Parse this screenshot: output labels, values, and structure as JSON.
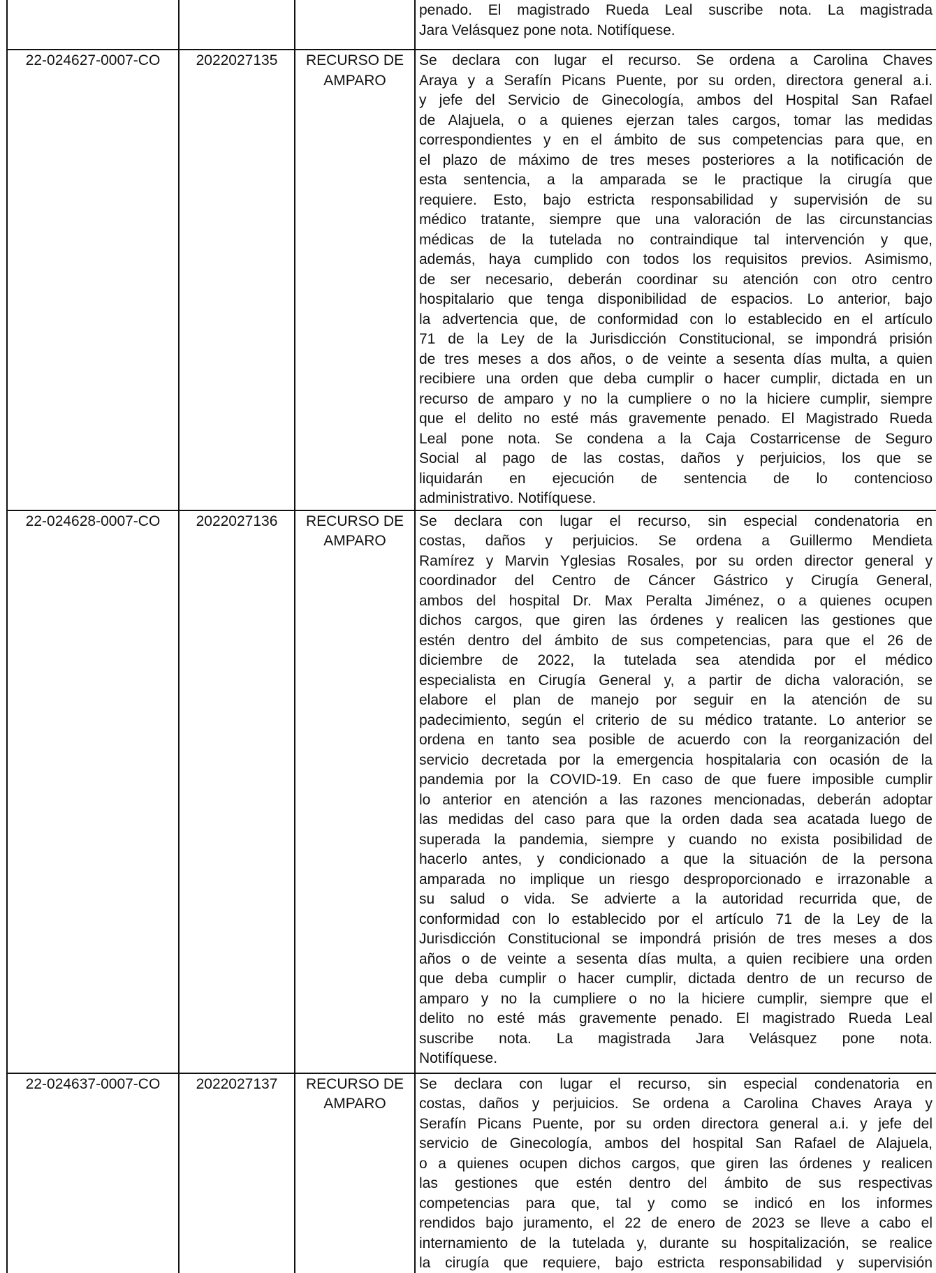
{
  "table": {
    "rows": [
      {
        "case": "",
        "number": "",
        "type": "",
        "text": [
          "penado. El magistrado Rueda Leal suscribe nota. La magistrada",
          "Jara Velásquez pone nota. Notifíquese."
        ]
      },
      {
        "case": "22-024627-0007-CO",
        "number": "2022027135",
        "type": "RECURSO DE AMPARO",
        "text": [
          "Se declara con lugar el recurso. Se ordena a Carolina Chaves",
          "Araya y a Serafín Picans Puente, por su orden, directora general a.i.",
          "y jefe del Servicio de Ginecología, ambos del Hospital San Rafael",
          "de Alajuela, o a quienes ejerzan tales cargos, tomar las medidas",
          "correspondientes y en el ámbito de sus competencias para que, en",
          "el plazo de máximo de tres meses posteriores a la notificación de",
          "esta sentencia, a la amparada se le practique la cirugía que",
          "requiere. Esto, bajo estricta responsabilidad y supervisión de su",
          "médico tratante, siempre que una valoración de las circunstancias",
          "médicas de la tutelada no contraindique tal intervención y que,",
          "además, haya cumplido con todos los requisitos previos. Asimismo,",
          "de ser necesario, deberán coordinar su atención con otro centro",
          "hospitalario que tenga disponibilidad de espacios. Lo anterior, bajo",
          "la advertencia que, de conformidad con lo establecido en el artículo",
          "71 de la Ley de la Jurisdicción Constitucional, se impondrá prisión",
          "de tres meses a dos años, o de veinte a sesenta días multa, a quien",
          "recibiere una orden que deba cumplir o hacer cumplir, dictada en un",
          "recurso de amparo y no la cumpliere o no la hiciere cumplir, siempre",
          "que el delito no esté más gravemente penado. El Magistrado Rueda",
          "Leal pone nota. Se condena a la Caja Costarricense de Seguro",
          "Social al pago de las costas, daños y perjuicios, los que se",
          "liquidarán en ejecución de sentencia de lo contencioso",
          "administrativo. Notifíquese."
        ]
      },
      {
        "case": "22-024628-0007-CO",
        "number": "2022027136",
        "type": "RECURSO DE AMPARO",
        "text": [
          "Se declara con lugar el recurso, sin especial condenatoria en",
          "costas, daños y perjuicios. Se ordena a Guillermo Mendieta",
          "Ramírez y Marvin Yglesias Rosales, por su orden director general y",
          "coordinador del Centro de Cáncer Gástrico y Cirugía General,",
          "ambos del hospital Dr. Max Peralta Jiménez, o a quienes ocupen",
          "dichos cargos, que giren las órdenes y realicen las gestiones que",
          "estén dentro del ámbito de sus competencias, para que el 26 de",
          "diciembre de 2022, la tutelada sea atendida por el médico",
          "especialista en Cirugía General y, a partir de dicha valoración, se",
          "elabore el plan de manejo por seguir en la atención de su",
          "padecimiento, según el criterio de su médico tratante. Lo anterior se",
          "ordena en tanto sea posible de acuerdo con la reorganización del",
          "servicio decretada por la emergencia hospitalaria con ocasión de la",
          "pandemia por la COVID-19. En caso de que fuere imposible cumplir",
          "lo anterior en atención a las razones mencionadas, deberán adoptar",
          "las medidas del caso para que la orden dada sea acatada luego de",
          "superada la pandemia, siempre y cuando no exista posibilidad de",
          "hacerlo antes, y condicionado a que la situación de la persona",
          "amparada no implique un riesgo desproporcionado e irrazonable a",
          "su salud o vida. Se advierte a la autoridad recurrida que, de",
          "conformidad con lo establecido por el artículo 71 de la Ley de la",
          "Jurisdicción Constitucional se impondrá prisión de tres meses a dos",
          "años o de veinte a sesenta días multa, a quien recibiere una orden",
          "que deba cumplir o hacer cumplir, dictada dentro de un recurso de",
          "amparo y no la cumpliere o no la hiciere cumplir, siempre que el",
          "delito no esté más gravemente penado. El magistrado Rueda Leal",
          "suscribe nota. La magistrada Jara Velásquez pone nota.",
          "Notifíquese."
        ]
      },
      {
        "case": "22-024637-0007-CO",
        "number": "2022027137",
        "type": "RECURSO DE AMPARO",
        "text": [
          "Se declara con lugar el recurso, sin especial condenatoria en",
          "costas, daños y perjuicios. Se ordena a Carolina Chaves Araya y",
          "Serafín Picans Puente, por su orden directora general a.i. y jefe del",
          "servicio de Ginecología, ambos del hospital San Rafael de Alajuela,",
          "o a quienes ocupen dichos cargos, que giren las órdenes y realicen",
          "las gestiones que estén dentro del ámbito de sus respectivas",
          "competencias para que, tal y como se indicó en los informes",
          "rendidos bajo juramento, el 22 de enero de 2023 se lleve a cabo el",
          "internamiento de la tutelada y, durante su hospitalización, se realice",
          "la cirugía que requiere, bajo estricta responsabilidad y supervisión"
        ]
      }
    ]
  }
}
